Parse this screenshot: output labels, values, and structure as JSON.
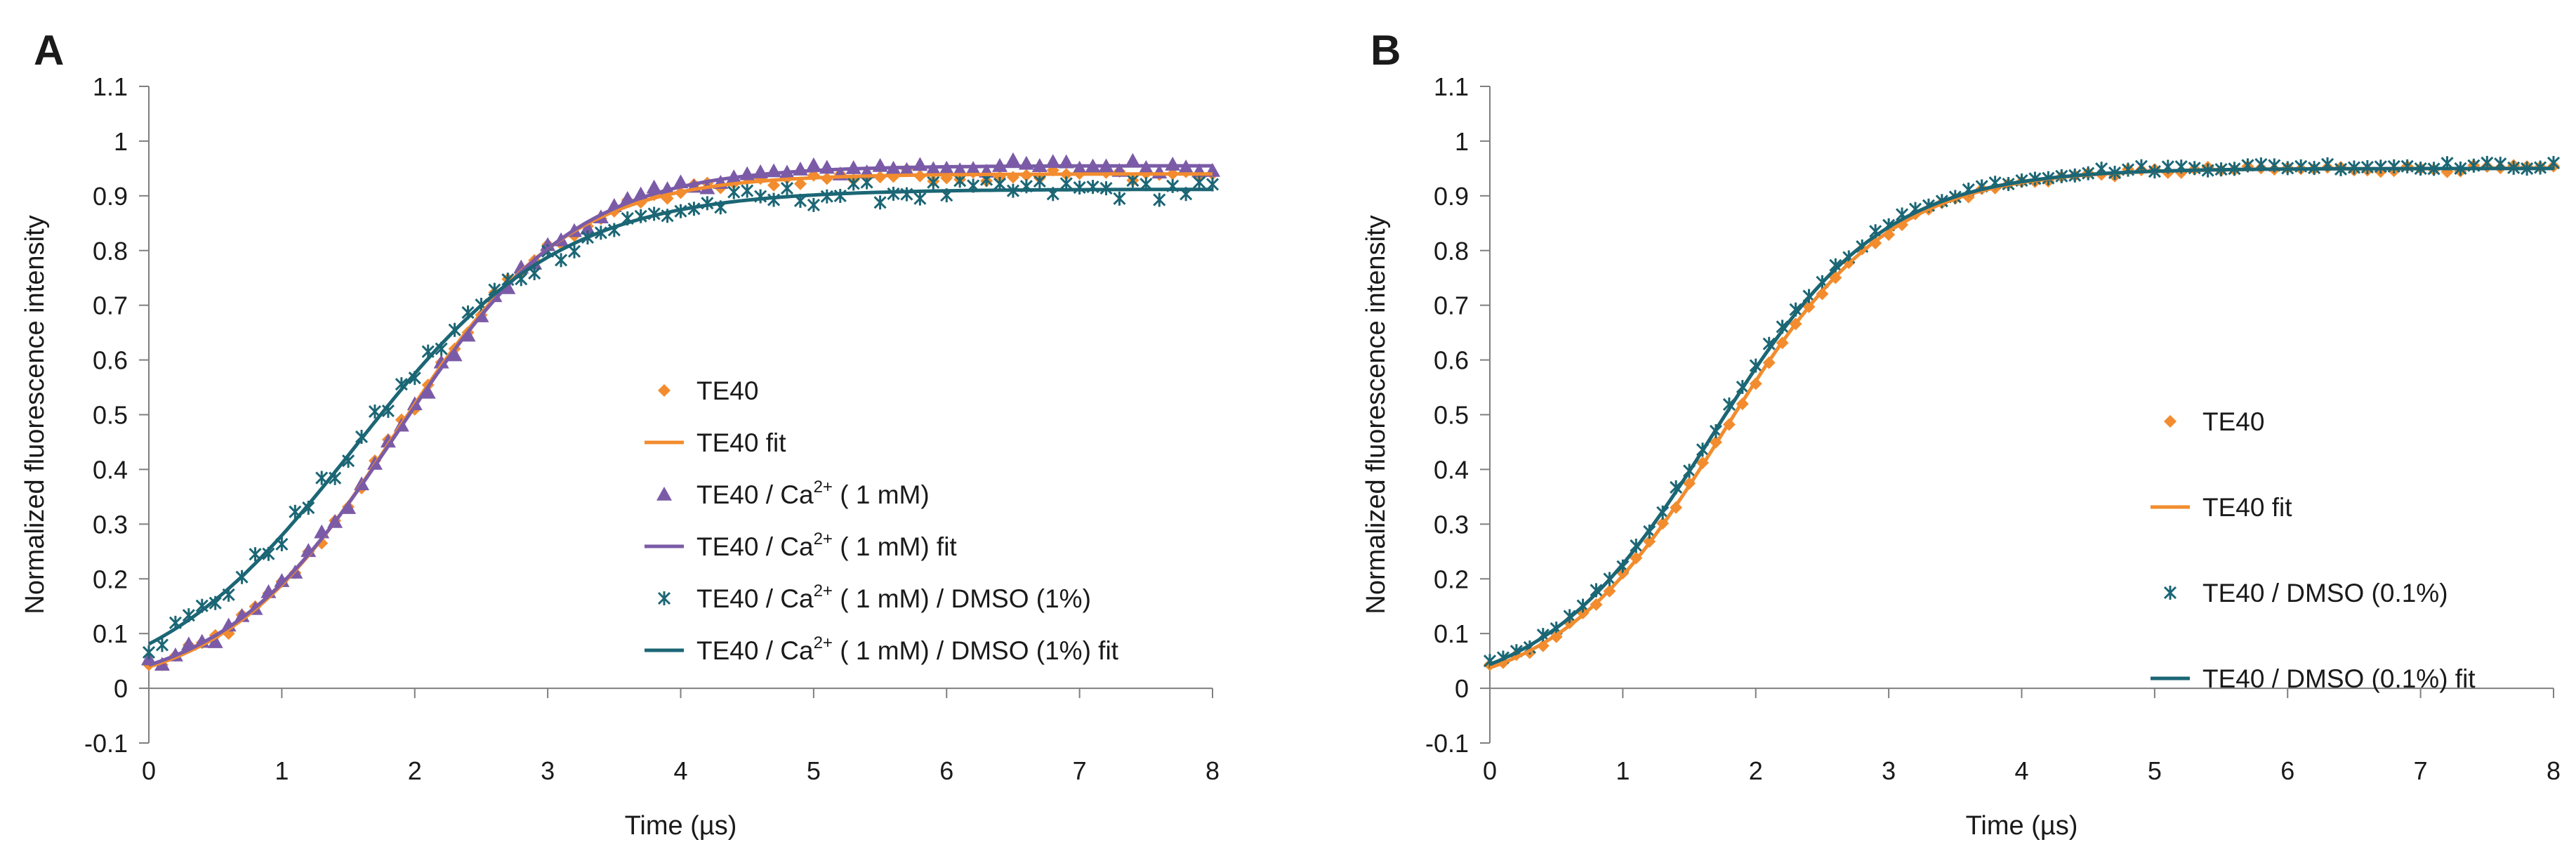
{
  "colors": {
    "te40": "#F28C2E",
    "te40_ca": "#7B5BA7",
    "dmso": "#1B6675",
    "axis": "#7f7f7f"
  },
  "chart_data": [
    {
      "panel": "A",
      "type": "scatter",
      "xlabel": "Time (µs)",
      "ylabel": "Normalized fluorescence intensity",
      "xlim": [
        0,
        8
      ],
      "ylim": [
        -0.1,
        1.1
      ],
      "x_ticks": [
        "0",
        "1",
        "2",
        "3",
        "4",
        "5",
        "6",
        "7",
        "8"
      ],
      "y_ticks": [
        "-0.1",
        "0",
        "0.1",
        "0.2",
        "0.3",
        "0.4",
        "0.5",
        "0.6",
        "0.7",
        "0.8",
        "0.9",
        "1",
        "1.1"
      ],
      "legend_position": "center",
      "legend": [
        {
          "label": "TE40",
          "marker": "diamond",
          "color_key": "te40",
          "kind": "points"
        },
        {
          "label": "TE40 fit",
          "color_key": "te40",
          "kind": "line"
        },
        {
          "label_pre": "TE40 / Ca",
          "sup": "2+",
          "label_post": " ( 1 mM)",
          "marker": "triangle",
          "color_key": "te40_ca",
          "kind": "points"
        },
        {
          "label_pre": "TE40 / Ca",
          "sup": "2+",
          "label_post": " ( 1 mM) fit",
          "color_key": "te40_ca",
          "kind": "line"
        },
        {
          "label_pre": "TE40 / Ca",
          "sup": "2+",
          "label_post": " ( 1 mM) / DMSO (1%)",
          "marker": "star",
          "color_key": "dmso",
          "kind": "points"
        },
        {
          "label_pre": "TE40 / Ca",
          "sup": "2+",
          "label_post": " ( 1 mM) / DMSO (1%) fit",
          "color_key": "dmso",
          "kind": "line"
        }
      ],
      "fits": [
        {
          "name": "TE40 fit",
          "color_key": "te40",
          "t0": 1.85,
          "k": 1.55,
          "top": 0.94,
          "bottom": -0.012
        },
        {
          "name": "TE40 / Ca2+ (1 mM) fit",
          "color_key": "te40_ca",
          "t0": 1.88,
          "k": 1.5,
          "top": 0.955,
          "bottom": -0.012
        },
        {
          "name": "TE40 / Ca2+ (1 mM) / DMSO (1%) fit",
          "color_key": "dmso",
          "t0": 1.55,
          "k": 1.3,
          "top": 0.912,
          "bottom": -0.03
        }
      ],
      "series": [
        {
          "name": "TE40",
          "marker": "diamond",
          "color_key": "te40",
          "t0": 1.85,
          "k": 1.55,
          "top": 0.94,
          "bottom": -0.012,
          "n": 80,
          "noise": 0.012
        },
        {
          "name": "TE40 / Ca2+ (1 mM)",
          "marker": "triangle",
          "color_key": "te40_ca",
          "t0": 1.88,
          "k": 1.5,
          "top": 0.955,
          "bottom": -0.012,
          "n": 80,
          "noise": 0.012
        },
        {
          "name": "TE40 / Ca2+ (1 mM) / DMSO (1%)",
          "marker": "star",
          "color_key": "dmso",
          "t0": 1.55,
          "k": 1.3,
          "top": 0.912,
          "bottom": -0.03,
          "n": 80,
          "noise": 0.02
        }
      ]
    },
    {
      "panel": "B",
      "type": "scatter",
      "xlabel": "Time (µs)",
      "ylabel": "Normalized fluorescence intensity",
      "xlim": [
        0,
        8
      ],
      "ylim": [
        -0.1,
        1.1
      ],
      "x_ticks": [
        "0",
        "1",
        "2",
        "3",
        "4",
        "5",
        "6",
        "7",
        "8"
      ],
      "y_ticks": [
        "-0.1",
        "0",
        "0.1",
        "0.2",
        "0.3",
        "0.4",
        "0.5",
        "0.6",
        "0.7",
        "0.8",
        "0.9",
        "1",
        "1.1"
      ],
      "legend_position": "center",
      "legend": [
        {
          "label": "TE40",
          "marker": "diamond",
          "color_key": "te40",
          "kind": "points"
        },
        {
          "label": "TE40 fit",
          "color_key": "te40",
          "kind": "line"
        },
        {
          "label": "TE40 / DMSO (0.1%)",
          "marker": "star",
          "color_key": "dmso",
          "kind": "points"
        },
        {
          "label": "TE40 / DMSO (0.1%) fit",
          "color_key": "dmso",
          "kind": "line"
        }
      ],
      "fits": [
        {
          "name": "TE40 fit",
          "color_key": "te40",
          "t0": 1.75,
          "k": 1.6,
          "top": 0.95,
          "bottom": -0.018
        },
        {
          "name": "TE40 / DMSO (0.1%) fit",
          "color_key": "dmso",
          "t0": 1.68,
          "k": 1.58,
          "top": 0.95,
          "bottom": -0.02
        }
      ],
      "series": [
        {
          "name": "TE40",
          "marker": "diamond",
          "color_key": "te40",
          "t0": 1.75,
          "k": 1.6,
          "top": 0.95,
          "bottom": -0.018,
          "n": 80,
          "noise": 0.006
        },
        {
          "name": "TE40 / DMSO (0.1%)",
          "marker": "star",
          "color_key": "dmso",
          "t0": 1.68,
          "k": 1.58,
          "top": 0.955,
          "bottom": -0.02,
          "n": 80,
          "noise": 0.006
        }
      ]
    }
  ]
}
